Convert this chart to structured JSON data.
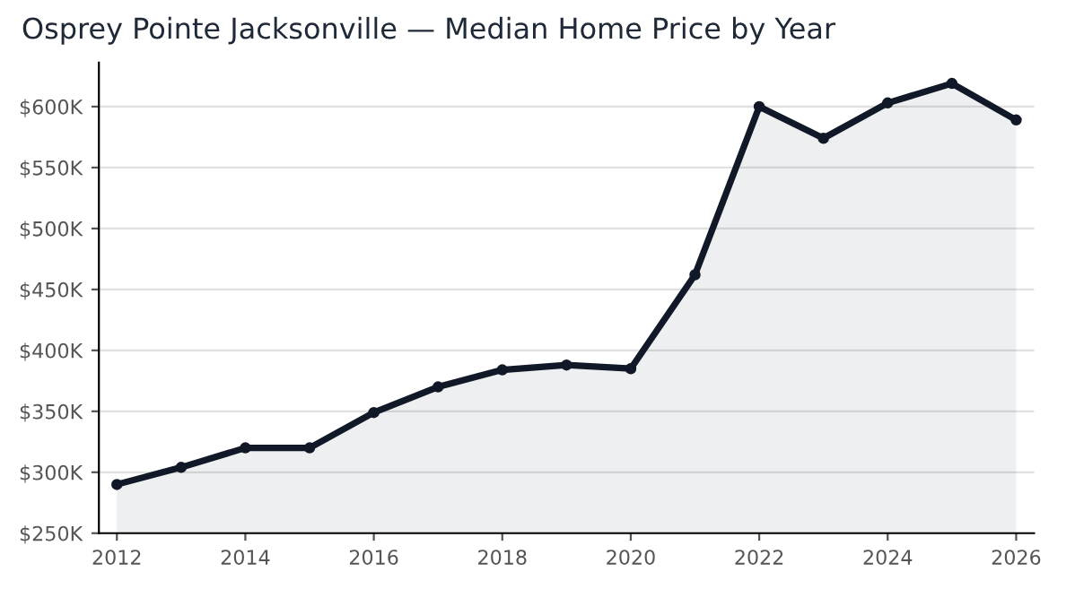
{
  "chart_data": {
    "type": "area",
    "title": "Osprey Pointe Jacksonville — Median Home Price by Year",
    "x": [
      2012,
      2013,
      2014,
      2015,
      2016,
      2017,
      2018,
      2019,
      2020,
      2021,
      2022,
      2023,
      2024,
      2025,
      2026
    ],
    "series": [
      {
        "color": "#111827",
        "values": [
          290000,
          304000,
          320000,
          320000,
          349000,
          370000,
          384000,
          388000,
          385000,
          462000,
          600000,
          574000,
          603000,
          619000,
          589000
        ]
      }
    ],
    "xlim": [
      2011.72,
      2026.28
    ],
    "xticks": [
      2012,
      2014,
      2016,
      2018,
      2020,
      2022,
      2024,
      2026
    ],
    "ylim": [
      250000,
      636000
    ],
    "yticks": [
      {
        "value": 250000,
        "label": "$250K"
      },
      {
        "value": 300000,
        "label": "$300K"
      },
      {
        "value": 350000,
        "label": "$350K"
      },
      {
        "value": 400000,
        "label": "$400K"
      },
      {
        "value": 450000,
        "label": "$450K"
      },
      {
        "value": 500000,
        "label": "$500K"
      },
      {
        "value": 550000,
        "label": "$550K"
      },
      {
        "value": 600000,
        "label": "$600K"
      }
    ],
    "grid": "y",
    "marker": "circle",
    "line_style": "solid"
  }
}
